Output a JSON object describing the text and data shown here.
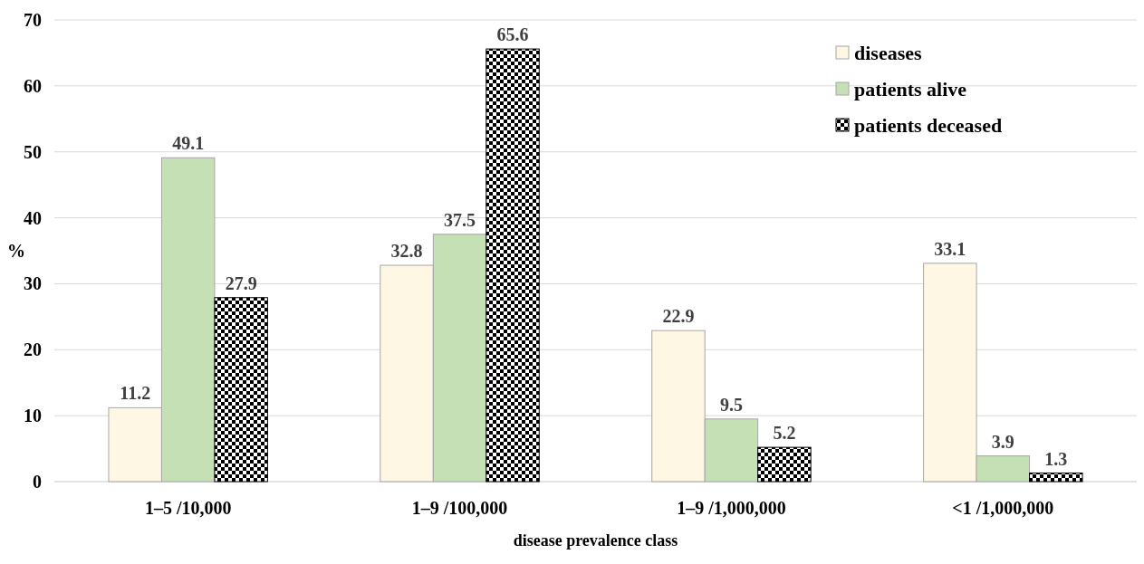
{
  "chart_data": {
    "type": "bar",
    "xlabel": "disease prevalence class",
    "ylabel": "%",
    "categories": [
      "1–5 /10,000",
      "1–9 /100,000",
      "1–9 /1,000,000",
      "<1 /1,000,000"
    ],
    "series": [
      {
        "name": "diseases",
        "color": "#fdf7e4",
        "values": [
          11.2,
          32.8,
          22.9,
          33.1
        ]
      },
      {
        "name": "patients alive",
        "color": "#c5e0b4",
        "values": [
          49.1,
          37.5,
          9.5,
          3.9
        ]
      },
      {
        "name": "patients deceased",
        "color": "#000000",
        "values": [
          27.9,
          65.6,
          5.2,
          1.3
        ]
      }
    ],
    "ylim": [
      0,
      70
    ],
    "yticks": [
      0,
      10,
      20,
      30,
      40,
      50,
      60,
      70
    ],
    "grid": "y",
    "legend": "top right",
    "data_labels": true
  }
}
